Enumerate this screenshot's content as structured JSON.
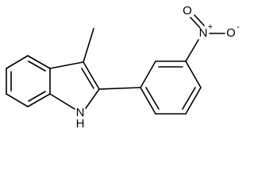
{
  "atoms": [
    {
      "label": "N",
      "charge": "+"
    },
    {
      "label": "O"
    },
    {
      "label": "O",
      "charge": "-"
    },
    {
      "label": "N",
      "hydrogen": "H"
    }
  ]
}
